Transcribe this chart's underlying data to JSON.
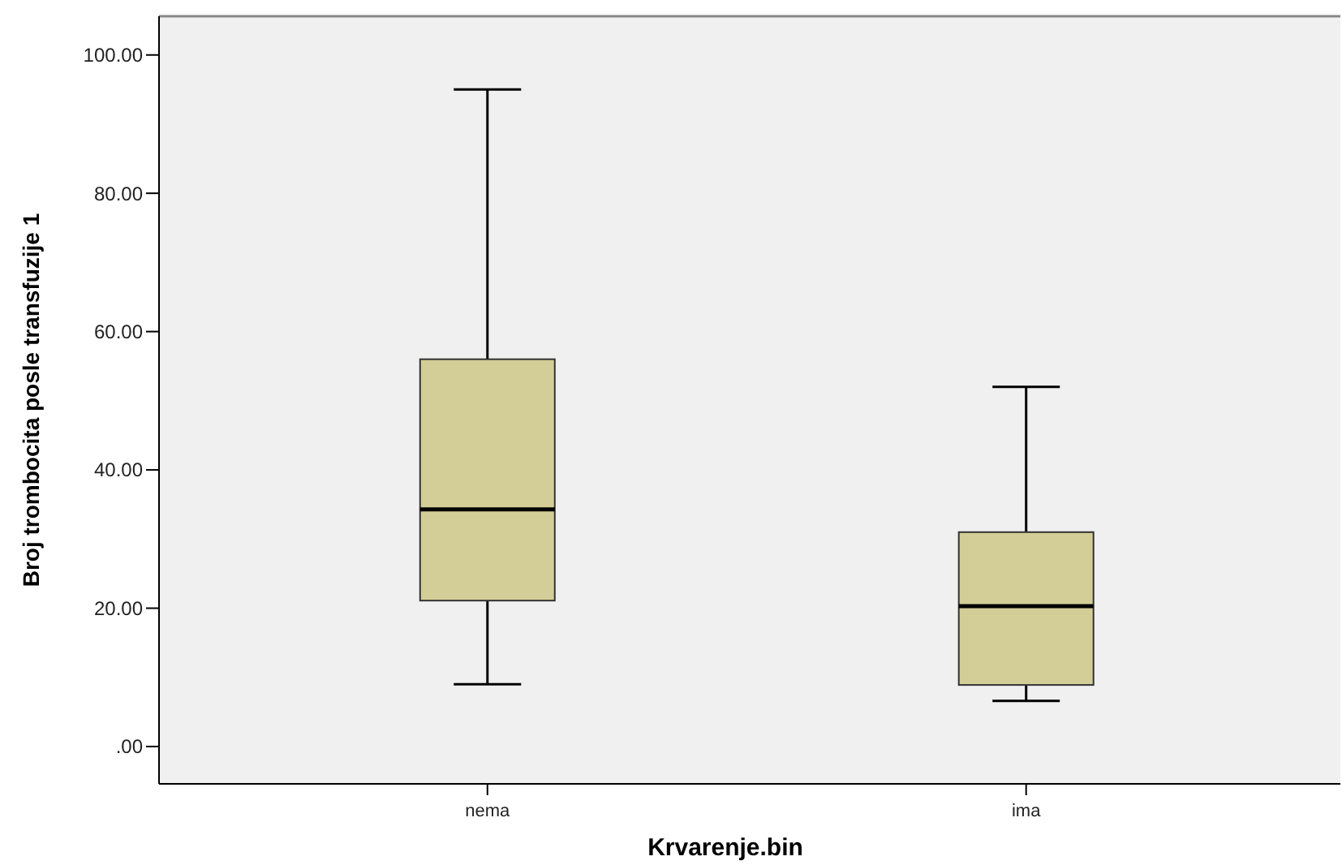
{
  "chart_data": {
    "type": "box",
    "xlabel": "Krvarenje.bin",
    "ylabel": "Broj trombocita posle transfuzije 1",
    "categories": [
      "nema",
      "ima"
    ],
    "color": "#d3ce98",
    "ylim": [
      -5.4,
      105.6
    ],
    "yticks": [
      {
        "value": 0,
        "label": ".00"
      },
      {
        "value": 20,
        "label": "20.00"
      },
      {
        "value": 40,
        "label": "40.00"
      },
      {
        "value": 60,
        "label": "60.00"
      },
      {
        "value": 80,
        "label": "80.00"
      },
      {
        "value": 100,
        "label": "100.00"
      }
    ],
    "grid": false,
    "boxes": [
      {
        "low": 9.0,
        "q1": 21.1,
        "median": 34.3,
        "q3": 56.0,
        "high": 95.0
      },
      {
        "low": 6.6,
        "q1": 8.9,
        "median": 20.3,
        "q3": 31.0,
        "high": 52.0
      }
    ]
  }
}
